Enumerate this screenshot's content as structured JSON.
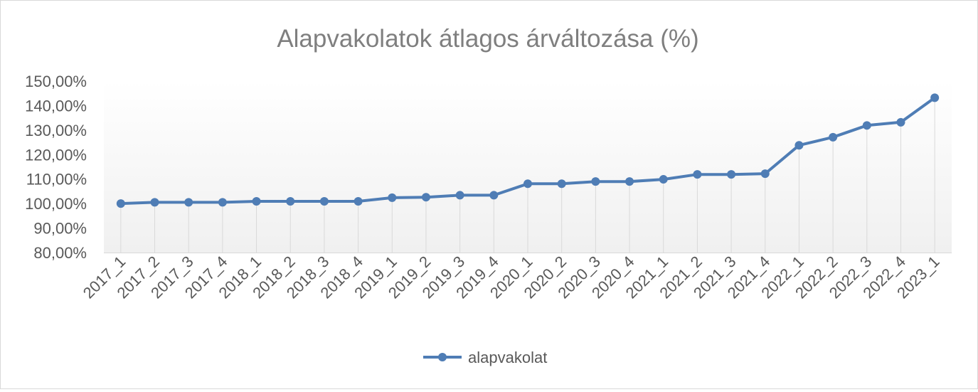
{
  "chart_data": {
    "type": "line",
    "title": "Alapvakolatok átlagos árváltozása (%)",
    "categories": [
      "2017_1",
      "2017_2",
      "2017_3",
      "2017_4",
      "2018_1",
      "2018_2",
      "2018_3",
      "2018_4",
      "2019_1",
      "2019_2",
      "2019_3",
      "2019_4",
      "2020_1",
      "2020_2",
      "2020_3",
      "2020_4",
      "2021_1",
      "2021_2",
      "2021_3",
      "2021_4",
      "2022_1",
      "2022_2",
      "2022_3",
      "2022_4",
      "2023_1"
    ],
    "series": [
      {
        "name": "alapvakolat",
        "color": "#4f7db5",
        "values": [
          100.0,
          100.5,
          100.5,
          100.5,
          100.9,
          100.9,
          100.9,
          100.9,
          102.4,
          102.6,
          103.4,
          103.4,
          108.1,
          108.1,
          109.0,
          109.0,
          109.9,
          111.9,
          111.9,
          112.2,
          123.8,
          127.1,
          131.9,
          133.2,
          143.2
        ]
      }
    ],
    "yTicks": [
      "80,00%",
      "90,00%",
      "100,00%",
      "110,00%",
      "120,00%",
      "130,00%",
      "140,00%",
      "150,00%"
    ],
    "ylim": [
      80,
      150
    ],
    "legend": "bottom",
    "grid": false,
    "dropLines": true
  }
}
